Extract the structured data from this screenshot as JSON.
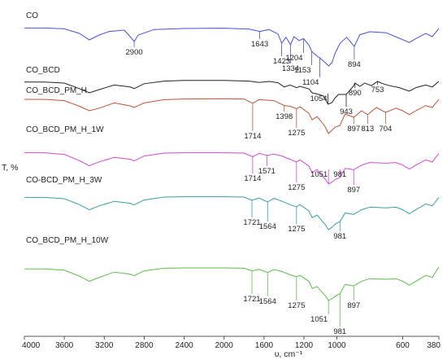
{
  "chart_data": {
    "type": "line",
    "title": "",
    "xlabel": "υ, cm⁻¹",
    "ylabel": "T, %",
    "xlim": [
      4000,
      380
    ],
    "x_direction": "descending",
    "x_ticks": [
      "4000",
      "3600",
      "3200",
      "2800",
      "2400",
      "2000",
      "1600",
      "1200",
      "1000",
      "600",
      "380"
    ],
    "grid": false,
    "legend": "none",
    "series": [
      {
        "name": "CO",
        "color": "#4a50d8",
        "points": [
          [
            4000,
            0.35
          ],
          [
            3800,
            0.35
          ],
          [
            3600,
            0.6
          ],
          [
            3450,
            2.0
          ],
          [
            3350,
            4.0
          ],
          [
            3250,
            2.5
          ],
          [
            3150,
            1.4
          ],
          [
            3000,
            1.0
          ],
          [
            2940,
            3.0
          ],
          [
            2900,
            4.5
          ],
          [
            2860,
            2.5
          ],
          [
            2700,
            0.8
          ],
          [
            2400,
            0.5
          ],
          [
            2000,
            0.4
          ],
          [
            1750,
            0.7
          ],
          [
            1643,
            1.4
          ],
          [
            1550,
            0.8
          ],
          [
            1460,
            2.2
          ],
          [
            1423,
            5.0
          ],
          [
            1380,
            3.2
          ],
          [
            1334,
            5.5
          ],
          [
            1300,
            3.0
          ],
          [
            1250,
            4.2
          ],
          [
            1204,
            3.6
          ],
          [
            1170,
            5.6
          ],
          [
            1153,
            7.5
          ],
          [
            1120,
            9.0
          ],
          [
            1104,
            9.5
          ],
          [
            1070,
            11.0
          ],
          [
            1050,
            12.0
          ],
          [
            1030,
            11.0
          ],
          [
            1010,
            8.0
          ],
          [
            980,
            5.0
          ],
          [
            940,
            3.2
          ],
          [
            894,
            6.0
          ],
          [
            860,
            2.4
          ],
          [
            800,
            1.5
          ],
          [
            700,
            1.8
          ],
          [
            620,
            3.5
          ],
          [
            560,
            4.8
          ],
          [
            520,
            3.6
          ],
          [
            460,
            2.0
          ],
          [
            420,
            3.0
          ],
          [
            380,
            0.5
          ]
        ],
        "annotations": [
          {
            "label": "2900",
            "x": 2900
          },
          {
            "label": "1643",
            "x": 1643
          },
          {
            "label": "1423",
            "x": 1423
          },
          {
            "label": "1334",
            "x": 1334
          },
          {
            "label": "1204",
            "x": 1204
          },
          {
            "label": "1153",
            "x": 1153
          },
          {
            "label": "1104",
            "x": 1104
          },
          {
            "label": "894",
            "x": 894
          }
        ]
      },
      {
        "name": "CO_BCD",
        "color": "#222222",
        "points": [
          [
            4000,
            0.7
          ],
          [
            3800,
            0.7
          ],
          [
            3600,
            1.0
          ],
          [
            3450,
            2.7
          ],
          [
            3350,
            4.0
          ],
          [
            3250,
            3.0
          ],
          [
            3100,
            1.6
          ],
          [
            2940,
            2.2
          ],
          [
            2900,
            2.7
          ],
          [
            2800,
            1.2
          ],
          [
            2600,
            0.4
          ],
          [
            2400,
            0.2
          ],
          [
            2000,
            0.2
          ],
          [
            1750,
            0.4
          ],
          [
            1650,
            0.8
          ],
          [
            1550,
            0.5
          ],
          [
            1460,
            0.9
          ],
          [
            1398,
            2.2
          ],
          [
            1340,
            1.6
          ],
          [
            1275,
            2.4
          ],
          [
            1240,
            2.0
          ],
          [
            1170,
            2.8
          ],
          [
            1150,
            4.0
          ],
          [
            1110,
            4.5
          ],
          [
            1080,
            5.0
          ],
          [
            1054,
            7.5
          ],
          [
            1030,
            7.0
          ],
          [
            1010,
            5.5
          ],
          [
            990,
            4.5
          ],
          [
            943,
            4.5
          ],
          [
            900,
            2.0
          ],
          [
            890,
            1.0
          ],
          [
            860,
            2.0
          ],
          [
            830,
            1.0
          ],
          [
            790,
            1.8
          ],
          [
            753,
            0.5
          ],
          [
            720,
            1.2
          ],
          [
            680,
            1.8
          ],
          [
            620,
            2.4
          ],
          [
            560,
            3.5
          ],
          [
            520,
            2.4
          ],
          [
            460,
            1.6
          ],
          [
            420,
            2.2
          ],
          [
            380,
            0.5
          ]
        ],
        "annotations": [
          {
            "label": "1054",
            "x": 1054
          },
          {
            "label": "943",
            "x": 943
          },
          {
            "label": "890",
            "x": 890
          },
          {
            "label": "753",
            "x": 753
          }
        ]
      },
      {
        "name": "CO_BCD_PM_H",
        "color": "#c0533a",
        "points": [
          [
            4000,
            0.5
          ],
          [
            3800,
            0.5
          ],
          [
            3600,
            0.9
          ],
          [
            3450,
            2.6
          ],
          [
            3350,
            4.0
          ],
          [
            3250,
            3.2
          ],
          [
            3100,
            1.6
          ],
          [
            2940,
            2.5
          ],
          [
            2900,
            3.0
          ],
          [
            2800,
            1.6
          ],
          [
            2600,
            0.6
          ],
          [
            2400,
            0.4
          ],
          [
            2000,
            0.3
          ],
          [
            1800,
            0.4
          ],
          [
            1714,
            1.7
          ],
          [
            1650,
            0.6
          ],
          [
            1500,
            0.9
          ],
          [
            1398,
            2.4
          ],
          [
            1340,
            2.6
          ],
          [
            1275,
            3.4
          ],
          [
            1240,
            2.8
          ],
          [
            1170,
            4.8
          ],
          [
            1150,
            6.8
          ],
          [
            1120,
            5.8
          ],
          [
            1100,
            7.0
          ],
          [
            1070,
            9.0
          ],
          [
            1051,
            11.0
          ],
          [
            1030,
            10.0
          ],
          [
            1010,
            9.0
          ],
          [
            981,
            8.5
          ],
          [
            950,
            5.0
          ],
          [
            897,
            6.0
          ],
          [
            850,
            4.0
          ],
          [
            813,
            5.2
          ],
          [
            760,
            3.0
          ],
          [
            704,
            4.5
          ],
          [
            640,
            3.2
          ],
          [
            600,
            4.0
          ],
          [
            560,
            5.2
          ],
          [
            520,
            4.0
          ],
          [
            460,
            2.4
          ],
          [
            420,
            3.0
          ],
          [
            380,
            0.5
          ]
        ],
        "annotations": [
          {
            "label": "1714",
            "x": 1714
          },
          {
            "label": "1398",
            "x": 1398
          },
          {
            "label": "1275",
            "x": 1275
          },
          {
            "label": "897",
            "x": 897
          },
          {
            "label": "813",
            "x": 813
          },
          {
            "label": "704",
            "x": 704
          }
        ]
      },
      {
        "name": "CO_BCD_PM_H_1W",
        "color": "#d04ad0",
        "points": [
          [
            4000,
            0.4
          ],
          [
            3800,
            0.4
          ],
          [
            3600,
            0.9
          ],
          [
            3450,
            2.8
          ],
          [
            3350,
            4.4
          ],
          [
            3250,
            3.2
          ],
          [
            3100,
            1.8
          ],
          [
            2940,
            2.4
          ],
          [
            2900,
            2.9
          ],
          [
            2800,
            1.4
          ],
          [
            2600,
            0.5
          ],
          [
            2400,
            0.4
          ],
          [
            2000,
            0.4
          ],
          [
            1800,
            0.5
          ],
          [
            1714,
            1.6
          ],
          [
            1650,
            0.6
          ],
          [
            1571,
            1.2
          ],
          [
            1500,
            0.8
          ],
          [
            1420,
            1.4
          ],
          [
            1340,
            2.4
          ],
          [
            1275,
            3.2
          ],
          [
            1240,
            2.6
          ],
          [
            1170,
            4.5
          ],
          [
            1150,
            6.5
          ],
          [
            1120,
            5.5
          ],
          [
            1100,
            6.8
          ],
          [
            1070,
            8.5
          ],
          [
            1051,
            10.0
          ],
          [
            1030,
            9.4
          ],
          [
            1010,
            8.6
          ],
          [
            981,
            8.0
          ],
          [
            950,
            5.2
          ],
          [
            897,
            5.6
          ],
          [
            850,
            4.2
          ],
          [
            800,
            3.4
          ],
          [
            700,
            3.6
          ],
          [
            640,
            3.4
          ],
          [
            600,
            4.2
          ],
          [
            560,
            5.4
          ],
          [
            520,
            4.2
          ],
          [
            460,
            2.6
          ],
          [
            420,
            3.2
          ],
          [
            380,
            0.6
          ]
        ],
        "annotations": [
          {
            "label": "1714",
            "x": 1714
          },
          {
            "label": "1571",
            "x": 1571
          },
          {
            "label": "1275",
            "x": 1275
          },
          {
            "label": "1051",
            "x": 1051
          },
          {
            "label": "981",
            "x": 981
          },
          {
            "label": "897",
            "x": 897
          }
        ]
      },
      {
        "name": "CO-BCD_PM_H_3W",
        "color": "#3a9fa0",
        "points": [
          [
            4000,
            0.6
          ],
          [
            3800,
            0.6
          ],
          [
            3600,
            1.0
          ],
          [
            3450,
            2.8
          ],
          [
            3350,
            4.4
          ],
          [
            3250,
            3.2
          ],
          [
            3100,
            1.8
          ],
          [
            2940,
            2.4
          ],
          [
            2900,
            2.9
          ],
          [
            2800,
            1.4
          ],
          [
            2600,
            0.5
          ],
          [
            2400,
            0.4
          ],
          [
            2000,
            0.4
          ],
          [
            1800,
            0.5
          ],
          [
            1721,
            1.5
          ],
          [
            1650,
            0.8
          ],
          [
            1564,
            2.0
          ],
          [
            1500,
            0.9
          ],
          [
            1420,
            1.8
          ],
          [
            1340,
            2.8
          ],
          [
            1275,
            3.5
          ],
          [
            1240,
            2.8
          ],
          [
            1170,
            4.8
          ],
          [
            1150,
            6.8
          ],
          [
            1120,
            6.0
          ],
          [
            1100,
            7.2
          ],
          [
            1070,
            9.0
          ],
          [
            1051,
            10.5
          ],
          [
            1030,
            9.8
          ],
          [
            1010,
            8.8
          ],
          [
            981,
            8.0
          ],
          [
            950,
            5.4
          ],
          [
            897,
            5.8
          ],
          [
            850,
            4.4
          ],
          [
            800,
            3.6
          ],
          [
            700,
            3.8
          ],
          [
            640,
            3.6
          ],
          [
            600,
            4.4
          ],
          [
            560,
            5.6
          ],
          [
            520,
            4.4
          ],
          [
            460,
            2.6
          ],
          [
            420,
            3.2
          ],
          [
            380,
            0.6
          ]
        ],
        "annotations": [
          {
            "label": "1721",
            "x": 1721
          },
          {
            "label": "1564",
            "x": 1564
          },
          {
            "label": "1275",
            "x": 1275
          },
          {
            "label": "981",
            "x": 981
          }
        ]
      },
      {
        "name": "CO_BCD_PM_H_10W",
        "color": "#5bbf4a",
        "points": [
          [
            4000,
            0.8
          ],
          [
            3800,
            0.8
          ],
          [
            3600,
            1.2
          ],
          [
            3450,
            3.0
          ],
          [
            3350,
            4.6
          ],
          [
            3250,
            3.4
          ],
          [
            3100,
            1.8
          ],
          [
            2940,
            2.4
          ],
          [
            2900,
            2.9
          ],
          [
            2800,
            1.4
          ],
          [
            2600,
            0.6
          ],
          [
            2400,
            0.5
          ],
          [
            2000,
            0.5
          ],
          [
            1800,
            0.6
          ],
          [
            1721,
            1.4
          ],
          [
            1650,
            0.9
          ],
          [
            1564,
            1.9
          ],
          [
            1500,
            1.0
          ],
          [
            1420,
            1.6
          ],
          [
            1340,
            2.6
          ],
          [
            1275,
            3.2
          ],
          [
            1240,
            2.8
          ],
          [
            1170,
            4.6
          ],
          [
            1150,
            6.8
          ],
          [
            1120,
            6.2
          ],
          [
            1100,
            7.4
          ],
          [
            1070,
            9.0
          ],
          [
            1051,
            10.5
          ],
          [
            1030,
            10.0
          ],
          [
            1010,
            9.2
          ],
          [
            981,
            8.4
          ],
          [
            950,
            5.6
          ],
          [
            897,
            6.0
          ],
          [
            850,
            4.6
          ],
          [
            800,
            3.8
          ],
          [
            700,
            4.0
          ],
          [
            640,
            3.8
          ],
          [
            600,
            4.6
          ],
          [
            560,
            5.8
          ],
          [
            520,
            4.6
          ],
          [
            460,
            2.8
          ],
          [
            420,
            3.4
          ],
          [
            380,
            0.2
          ]
        ],
        "annotations": [
          {
            "label": "1721",
            "x": 1721
          },
          {
            "label": "1564",
            "x": 1564
          },
          {
            "label": "1275",
            "x": 1275
          },
          {
            "label": "1051",
            "x": 1051
          },
          {
            "label": "981",
            "x": 981
          },
          {
            "label": "897",
            "x": 897
          }
        ]
      }
    ]
  }
}
